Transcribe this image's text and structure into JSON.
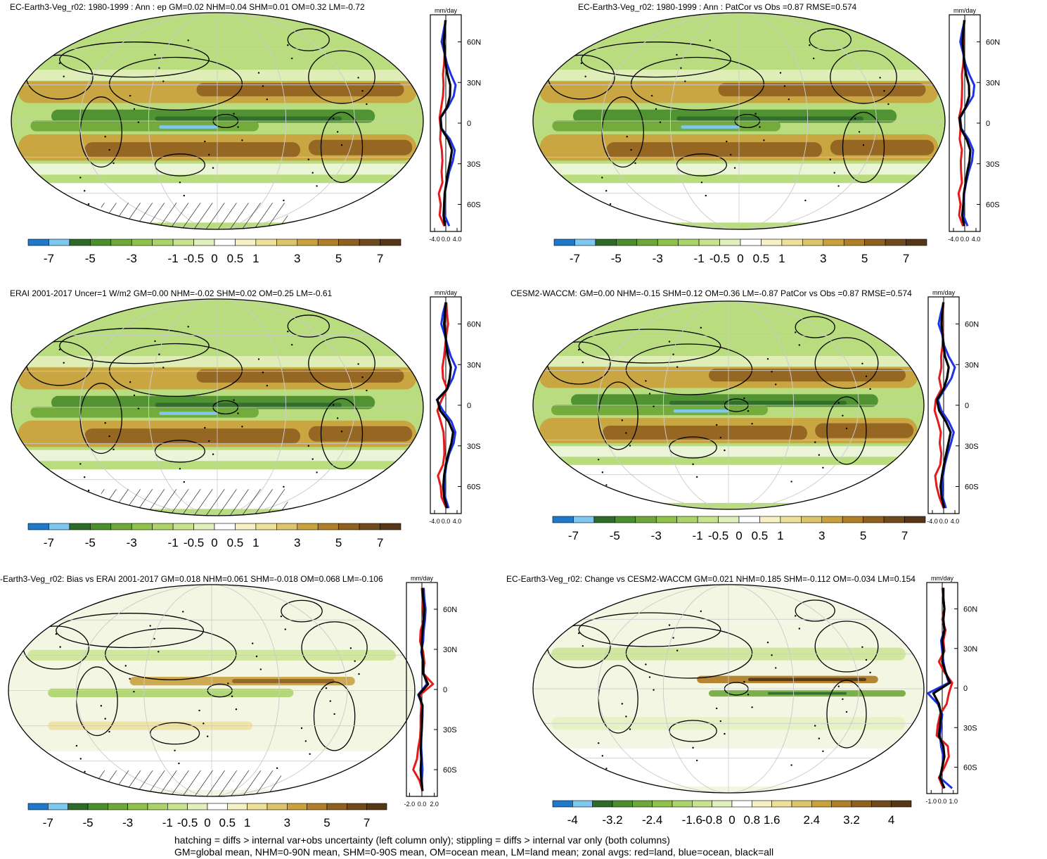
{
  "panels": [
    {
      "title": "EC-Earth3-Veg_r02: 1980-1999 : Ann : ep GM=0.02 NHM=0.04 SHM=0.01 OM=0.32 LM=-0.72",
      "zonal_unit": "mm/day",
      "zonal_ticks": [
        "-4.0",
        "0.0",
        "4.0"
      ],
      "lat_ticks": [
        "60N",
        "30N",
        "0",
        "30S",
        "60S"
      ],
      "colorbar_labels": [
        "-7",
        "-5",
        "-3",
        "-1",
        "-0.5",
        "0",
        "0.5",
        "1",
        "3",
        "5",
        "7"
      ],
      "hatching": true
    },
    {
      "title": "EC-Earth3-Veg_r02: 1980-1999 : Ann : PatCor vs Obs =0.87 RMSE=0.574",
      "zonal_unit": "mm/day",
      "zonal_ticks": [
        "-4.0",
        "0.0",
        "4.0"
      ],
      "lat_ticks": [
        "60N",
        "30N",
        "0",
        "30S",
        "60S"
      ],
      "colorbar_labels": [
        "-7",
        "-5",
        "-3",
        "-1",
        "-0.5",
        "0",
        "0.5",
        "1",
        "3",
        "5",
        "7"
      ],
      "hatching": false
    },
    {
      "title": "ERAI 2001-2017 Uncer=1 W/m2 GM=0.00 NHM=-0.02 SHM=0.02 OM=0.25 LM=-0.61",
      "zonal_unit": "mm/day",
      "zonal_ticks": [
        "-4.0",
        "0.0",
        "4.0"
      ],
      "lat_ticks": [
        "60N",
        "30N",
        "0",
        "30S",
        "60S"
      ],
      "colorbar_labels": [
        "-7",
        "-5",
        "-3",
        "-1",
        "-0.5",
        "0",
        "0.5",
        "1",
        "3",
        "5",
        "7"
      ],
      "hatching": true
    },
    {
      "title": "CESM2-WACCM: GM=0.00 NHM=-0.15 SHM=0.12 OM=0.36 LM=-0.87 PatCor vs Obs =0.87 RMSE=0.574",
      "zonal_unit": "mm/day",
      "zonal_ticks": [
        "-4.0",
        "0.0",
        "4.0"
      ],
      "lat_ticks": [
        "60N",
        "30N",
        "0",
        "30S",
        "60S"
      ],
      "colorbar_labels": [
        "-7",
        "-5",
        "-3",
        "-1",
        "-0.5",
        "0",
        "0.5",
        "1",
        "3",
        "5",
        "7"
      ],
      "hatching": false
    },
    {
      "title": "-Earth3-Veg_r02: Bias vs ERAI 2001-2017 GM=0.018 NHM=0.061 SHM=-0.018 OM=0.068 LM=-0.106",
      "zonal_unit": "mm/day",
      "zonal_ticks": [
        "-2.0",
        "0.0",
        "2.0"
      ],
      "lat_ticks": [
        "60N",
        "30N",
        "0",
        "30S",
        "60S"
      ],
      "colorbar_labels": [
        "-7",
        "-5",
        "-3",
        "-1",
        "-0.5",
        "0",
        "0.5",
        "1",
        "3",
        "5",
        "7"
      ],
      "hatching": true
    },
    {
      "title": "EC-Earth3-Veg_r02: Change vs CESM2-WACCM GM=0.021 NHM=0.185 SHM=-0.112 OM=-0.034 LM=0.154",
      "zonal_unit": "mm/day",
      "zonal_ticks": [
        "-1.0",
        "0.0",
        "1.0"
      ],
      "lat_ticks": [
        "60N",
        "30N",
        "0",
        "30S",
        "60S"
      ],
      "colorbar_labels": [
        "-4",
        "-3.2",
        "-2.4",
        "-1.6",
        "-0.8",
        "0",
        "0.8",
        "1.6",
        "2.4",
        "3.2",
        "4"
      ],
      "hatching": false
    }
  ],
  "colors": {
    "scale": [
      "#1f78c8",
      "#7ec8f0",
      "#2e6b2a",
      "#4b8e2e",
      "#6fa83a",
      "#8fc24a",
      "#acd36a",
      "#c8e38e",
      "#e2f0bd",
      "#ffffff",
      "#f6f0c6",
      "#ece09a",
      "#dcc46a",
      "#c9a23e",
      "#b07f2a",
      "#8f6120",
      "#6f4a1c",
      "#553616"
    ],
    "land": "#e41a1c",
    "ocean": "#1f33e6",
    "all": "#000000"
  },
  "footer": {
    "line1": "hatching = diffs > internal var+obs uncertainty (left column only); stippling = diffs > internal var only (both columns)",
    "line2": "GM=global mean, NHM=0-90N mean, SHM=0-90S mean, OM=ocean mean, LM=land mean; zonal avgs: red=land, blue=ocean, black=all"
  },
  "chart_data": [
    {
      "type": "line",
      "title": "EC-Earth3-Veg_r02: 1980-1999 : Ann : ep GM=0.02 NHM=0.04 SHM=0.01 OM=0.32 LM=-0.72",
      "xlabel": "mm/day",
      "ylabel": "",
      "xlim": [
        -5.5,
        5.5
      ],
      "ylim": [
        -80,
        80
      ],
      "lat": [
        -76,
        -68,
        -60,
        -52,
        -44,
        -36,
        -28,
        -20,
        -12,
        -4,
        4,
        12,
        20,
        28,
        36,
        44,
        52,
        60,
        68,
        76
      ],
      "series": [
        {
          "name": "land",
          "values": [
            -0.5,
            -2.2,
            -1.8,
            -2.5,
            -1.2,
            -1.5,
            -1.2,
            -1.4,
            -2.0,
            -1.8,
            -2.2,
            -1.6,
            -1.0,
            -0.8,
            -1.0,
            -0.6,
            -0.4,
            -0.6,
            -0.4,
            -0.2
          ]
        },
        {
          "name": "ocean",
          "values": [
            1.2,
            -0.4,
            -0.3,
            -0.4,
            0.4,
            1.2,
            2.5,
            3.2,
            1.5,
            -1.5,
            -1.8,
            0.8,
            2.8,
            3.5,
            1.8,
            0.4,
            -0.5,
            -1.5,
            -0.8,
            0.0
          ]
        },
        {
          "name": "all",
          "values": [
            -0.3,
            -0.8,
            -0.6,
            -0.4,
            0.2,
            0.8,
            1.6,
            2.2,
            0.8,
            -1.6,
            -1.9,
            0.5,
            1.5,
            1.6,
            0.6,
            -0.1,
            -0.4,
            -0.7,
            -0.4,
            -0.1
          ]
        }
      ]
    },
    {
      "type": "line",
      "title": "EC-Earth3-Veg_r02: 1980-1999 : Ann : PatCor vs Obs =0.87 RMSE=0.574",
      "xlabel": "mm/day",
      "ylabel": "",
      "xlim": [
        -5.5,
        5.5
      ],
      "ylim": [
        -80,
        80
      ],
      "lat": [
        -76,
        -68,
        -60,
        -52,
        -44,
        -36,
        -28,
        -20,
        -12,
        -4,
        4,
        12,
        20,
        28,
        36,
        44,
        52,
        60,
        68,
        76
      ],
      "series": [
        {
          "name": "land",
          "values": [
            -0.6,
            -2.0,
            -1.5,
            -2.2,
            -1.0,
            -1.3,
            -1.4,
            -1.0,
            -1.8,
            -1.5,
            -2.0,
            -1.2,
            -1.0,
            -0.9,
            -1.0,
            -0.5,
            -0.3,
            -0.5,
            -0.4,
            -0.2
          ]
        },
        {
          "name": "ocean",
          "values": [
            1.0,
            -0.5,
            -0.3,
            -0.2,
            0.5,
            1.4,
            2.6,
            3.0,
            1.4,
            -1.2,
            -1.6,
            0.6,
            3.0,
            3.4,
            1.6,
            0.2,
            -0.6,
            -1.6,
            -0.9,
            0.0
          ]
        },
        {
          "name": "all",
          "values": [
            -0.2,
            -0.9,
            -0.5,
            -0.3,
            0.3,
            0.9,
            1.7,
            2.0,
            0.7,
            -1.4,
            -1.8,
            0.4,
            1.6,
            1.5,
            0.5,
            -0.2,
            -0.4,
            -0.8,
            -0.5,
            -0.1
          ]
        }
      ]
    },
    {
      "type": "line",
      "title": "ERAI 2001-2017 Uncer=1 W/m2 GM=0.00 NHM=-0.02 SHM=0.02 OM=0.25 LM=-0.61",
      "xlabel": "mm/day",
      "ylabel": "",
      "xlim": [
        -5.5,
        5.5
      ],
      "ylim": [
        -80,
        80
      ],
      "lat": [
        -76,
        -68,
        -60,
        -52,
        -44,
        -36,
        -28,
        -20,
        -12,
        -4,
        4,
        12,
        20,
        28,
        36,
        44,
        52,
        60,
        68,
        76
      ],
      "series": [
        {
          "name": "land",
          "values": [
            0.2,
            -1.5,
            -1.8,
            -2.8,
            -1.0,
            -0.5,
            -0.6,
            -0.8,
            -1.8,
            -3.0,
            -1.5,
            0.5,
            -1.0,
            -1.2,
            -0.6,
            -0.2,
            0.2,
            0.8,
            0.4,
            0.2
          ]
        },
        {
          "name": "ocean",
          "values": [
            1.0,
            -0.2,
            -0.4,
            -0.3,
            0.2,
            1.2,
            2.8,
            3.4,
            2.0,
            -1.0,
            -3.2,
            0.5,
            2.5,
            3.6,
            1.8,
            0.6,
            -0.4,
            -1.6,
            -1.0,
            0.0
          ]
        },
        {
          "name": "all",
          "values": [
            0.4,
            -0.6,
            -0.9,
            -0.6,
            0.0,
            0.9,
            2.0,
            2.6,
            1.0,
            -2.0,
            -3.0,
            0.5,
            1.4,
            1.8,
            0.8,
            0.2,
            -0.1,
            -0.6,
            -0.3,
            0.0
          ]
        }
      ]
    },
    {
      "type": "line",
      "title": "CESM2-WACCM: GM=0.00 NHM=-0.15 SHM=0.12 OM=0.36 LM=-0.87 PatCor vs Obs =0.87 RMSE=0.574",
      "xlabel": "mm/day",
      "ylabel": "",
      "xlim": [
        -5.5,
        5.5
      ],
      "ylim": [
        -80,
        80
      ],
      "lat": [
        -76,
        -68,
        -60,
        -52,
        -44,
        -36,
        -28,
        -20,
        -12,
        -4,
        4,
        12,
        20,
        28,
        36,
        44,
        52,
        60,
        68,
        76
      ],
      "series": [
        {
          "name": "land",
          "values": [
            0.0,
            -1.5,
            -2.5,
            -3.0,
            -1.2,
            -0.8,
            -1.4,
            -1.0,
            -2.0,
            -3.2,
            -2.8,
            -0.8,
            -1.6,
            -0.8,
            -0.9,
            -0.4,
            -0.2,
            -0.4,
            -0.3,
            -0.1
          ]
        },
        {
          "name": "ocean",
          "values": [
            0.8,
            -0.3,
            -0.5,
            -0.2,
            0.4,
            1.4,
            2.6,
            3.6,
            1.8,
            -0.8,
            -2.0,
            0.4,
            2.8,
            4.0,
            1.8,
            0.2,
            -0.5,
            -1.8,
            -1.0,
            0.0
          ]
        },
        {
          "name": "all",
          "values": [
            0.2,
            -0.7,
            -1.1,
            -0.6,
            0.1,
            0.9,
            1.7,
            2.5,
            0.8,
            -1.6,
            -2.4,
            0.0,
            1.2,
            1.8,
            0.5,
            -0.1,
            -0.3,
            -0.8,
            -0.5,
            -0.1
          ]
        }
      ]
    },
    {
      "type": "line",
      "title": "-Earth3-Veg_r02: Bias vs ERAI 2001-2017 GM=0.018 NHM=0.061 SHM=-0.018 OM=0.068 LM=-0.106",
      "xlabel": "mm/day",
      "ylabel": "",
      "xlim": [
        -2.5,
        2.5
      ],
      "ylim": [
        -80,
        80
      ],
      "lat": [
        -76,
        -68,
        -60,
        -52,
        -44,
        -36,
        -28,
        -20,
        -12,
        -4,
        4,
        12,
        20,
        28,
        36,
        44,
        52,
        60,
        68,
        76
      ],
      "series": [
        {
          "name": "land",
          "values": [
            0.1,
            -0.4,
            -1.4,
            -0.8,
            -0.6,
            -0.3,
            -0.2,
            -0.2,
            -0.1,
            -0.3,
            1.8,
            0.2,
            0.4,
            0.2,
            -0.3,
            -0.2,
            0.3,
            0.2,
            0.1,
            0.0
          ]
        },
        {
          "name": "ocean",
          "values": [
            0.1,
            0.0,
            0.1,
            0.0,
            -0.1,
            -0.1,
            0.0,
            0.1,
            0.1,
            -0.6,
            0.8,
            0.3,
            0.2,
            -0.1,
            0.2,
            0.3,
            0.5,
            0.6,
            0.4,
            0.3
          ]
        },
        {
          "name": "all",
          "values": [
            0.1,
            -0.1,
            -0.2,
            -0.1,
            -0.2,
            -0.1,
            0.0,
            0.0,
            0.1,
            -0.5,
            1.0,
            0.2,
            0.2,
            0.0,
            0.0,
            0.1,
            0.3,
            0.4,
            0.2,
            0.1
          ]
        }
      ]
    },
    {
      "type": "line",
      "title": "EC-Earth3-Veg_r02: Change vs CESM2-WACCM GM=0.021 NHM=0.185 SHM=-0.112 OM=-0.034 LM=0.154",
      "xlabel": "mm/day",
      "ylabel": "",
      "xlim": [
        -1.4,
        1.4
      ],
      "ylim": [
        -80,
        80
      ],
      "lat": [
        -76,
        -68,
        -60,
        -52,
        -44,
        -36,
        -28,
        -20,
        -12,
        -4,
        4,
        12,
        20,
        28,
        36,
        44,
        52,
        60,
        68,
        76
      ],
      "series": [
        {
          "name": "land",
          "values": [
            0.1,
            -0.3,
            0.2,
            0.6,
            0.5,
            -0.5,
            -0.4,
            -0.2,
            0.4,
            0.6,
            0.9,
            0.2,
            -0.3,
            0.2,
            0.1,
            0.3,
            0.0,
            0.2,
            0.1,
            0.0
          ]
        },
        {
          "name": "ocean",
          "values": [
            0.9,
            -0.2,
            0.0,
            0.1,
            -0.1,
            -0.2,
            -0.1,
            0.0,
            -0.4,
            -1.3,
            0.6,
            0.3,
            0.1,
            0.0,
            -0.1,
            0.2,
            0.1,
            0.2,
            0.1,
            0.1
          ]
        },
        {
          "name": "all",
          "values": [
            0.2,
            -0.2,
            0.0,
            0.2,
            0.1,
            -0.3,
            -0.2,
            -0.1,
            -0.3,
            -0.8,
            0.7,
            0.3,
            0.0,
            0.1,
            0.0,
            0.2,
            0.1,
            0.2,
            0.1,
            0.1
          ]
        }
      ]
    }
  ]
}
